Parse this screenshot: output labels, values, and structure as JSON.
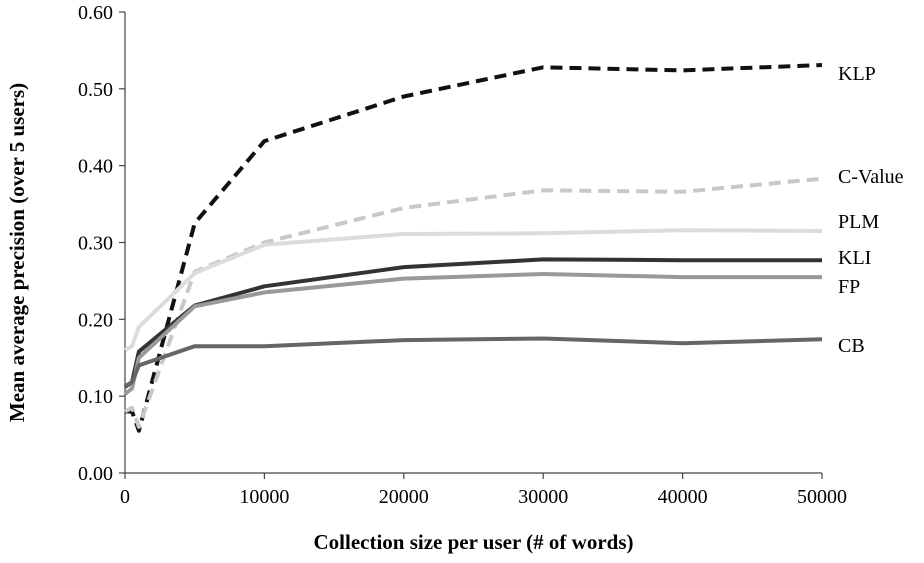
{
  "chart_data": {
    "type": "line",
    "title": "",
    "xlabel": "Collection size per user (# of words)",
    "ylabel": "Mean average precision (over 5 users)",
    "xlim": [
      0,
      50000
    ],
    "ylim": [
      0,
      0.6
    ],
    "x_ticks": [
      "0",
      "10000",
      "20000",
      "30000",
      "40000",
      "50000"
    ],
    "y_ticks": [
      "0.00",
      "0.10",
      "0.20",
      "0.30",
      "0.40",
      "0.50",
      "0.60"
    ],
    "grid": false,
    "legend": "series labels at right end of lines",
    "x": [
      0,
      500,
      1000,
      5000,
      10000,
      20000,
      30000,
      40000,
      50000
    ],
    "series": [
      {
        "name": "KLP",
        "values": [
          0.08,
          0.08,
          0.055,
          0.325,
          0.432,
          0.49,
          0.528,
          0.524,
          0.531
        ],
        "color": "#111111",
        "dash": true
      },
      {
        "name": "C-Value",
        "values": [
          0.08,
          0.085,
          0.06,
          0.262,
          0.3,
          0.345,
          0.368,
          0.366,
          0.383
        ],
        "color": "#c8c8c8",
        "dash": true
      },
      {
        "name": "PLM",
        "values": [
          0.16,
          0.165,
          0.19,
          0.26,
          0.297,
          0.311,
          0.312,
          0.316,
          0.315
        ],
        "color": "#dcdcdc",
        "dash": false
      },
      {
        "name": "KLI",
        "values": [
          0.112,
          0.118,
          0.158,
          0.218,
          0.243,
          0.268,
          0.278,
          0.277,
          0.277
        ],
        "color": "#333333",
        "dash": false
      },
      {
        "name": "FP",
        "values": [
          0.103,
          0.11,
          0.15,
          0.217,
          0.235,
          0.253,
          0.259,
          0.255,
          0.255
        ],
        "color": "#999999",
        "dash": false
      },
      {
        "name": "CB",
        "values": [
          0.113,
          0.118,
          0.14,
          0.165,
          0.165,
          0.173,
          0.175,
          0.169,
          0.174
        ],
        "color": "#666666",
        "dash": false
      }
    ]
  }
}
